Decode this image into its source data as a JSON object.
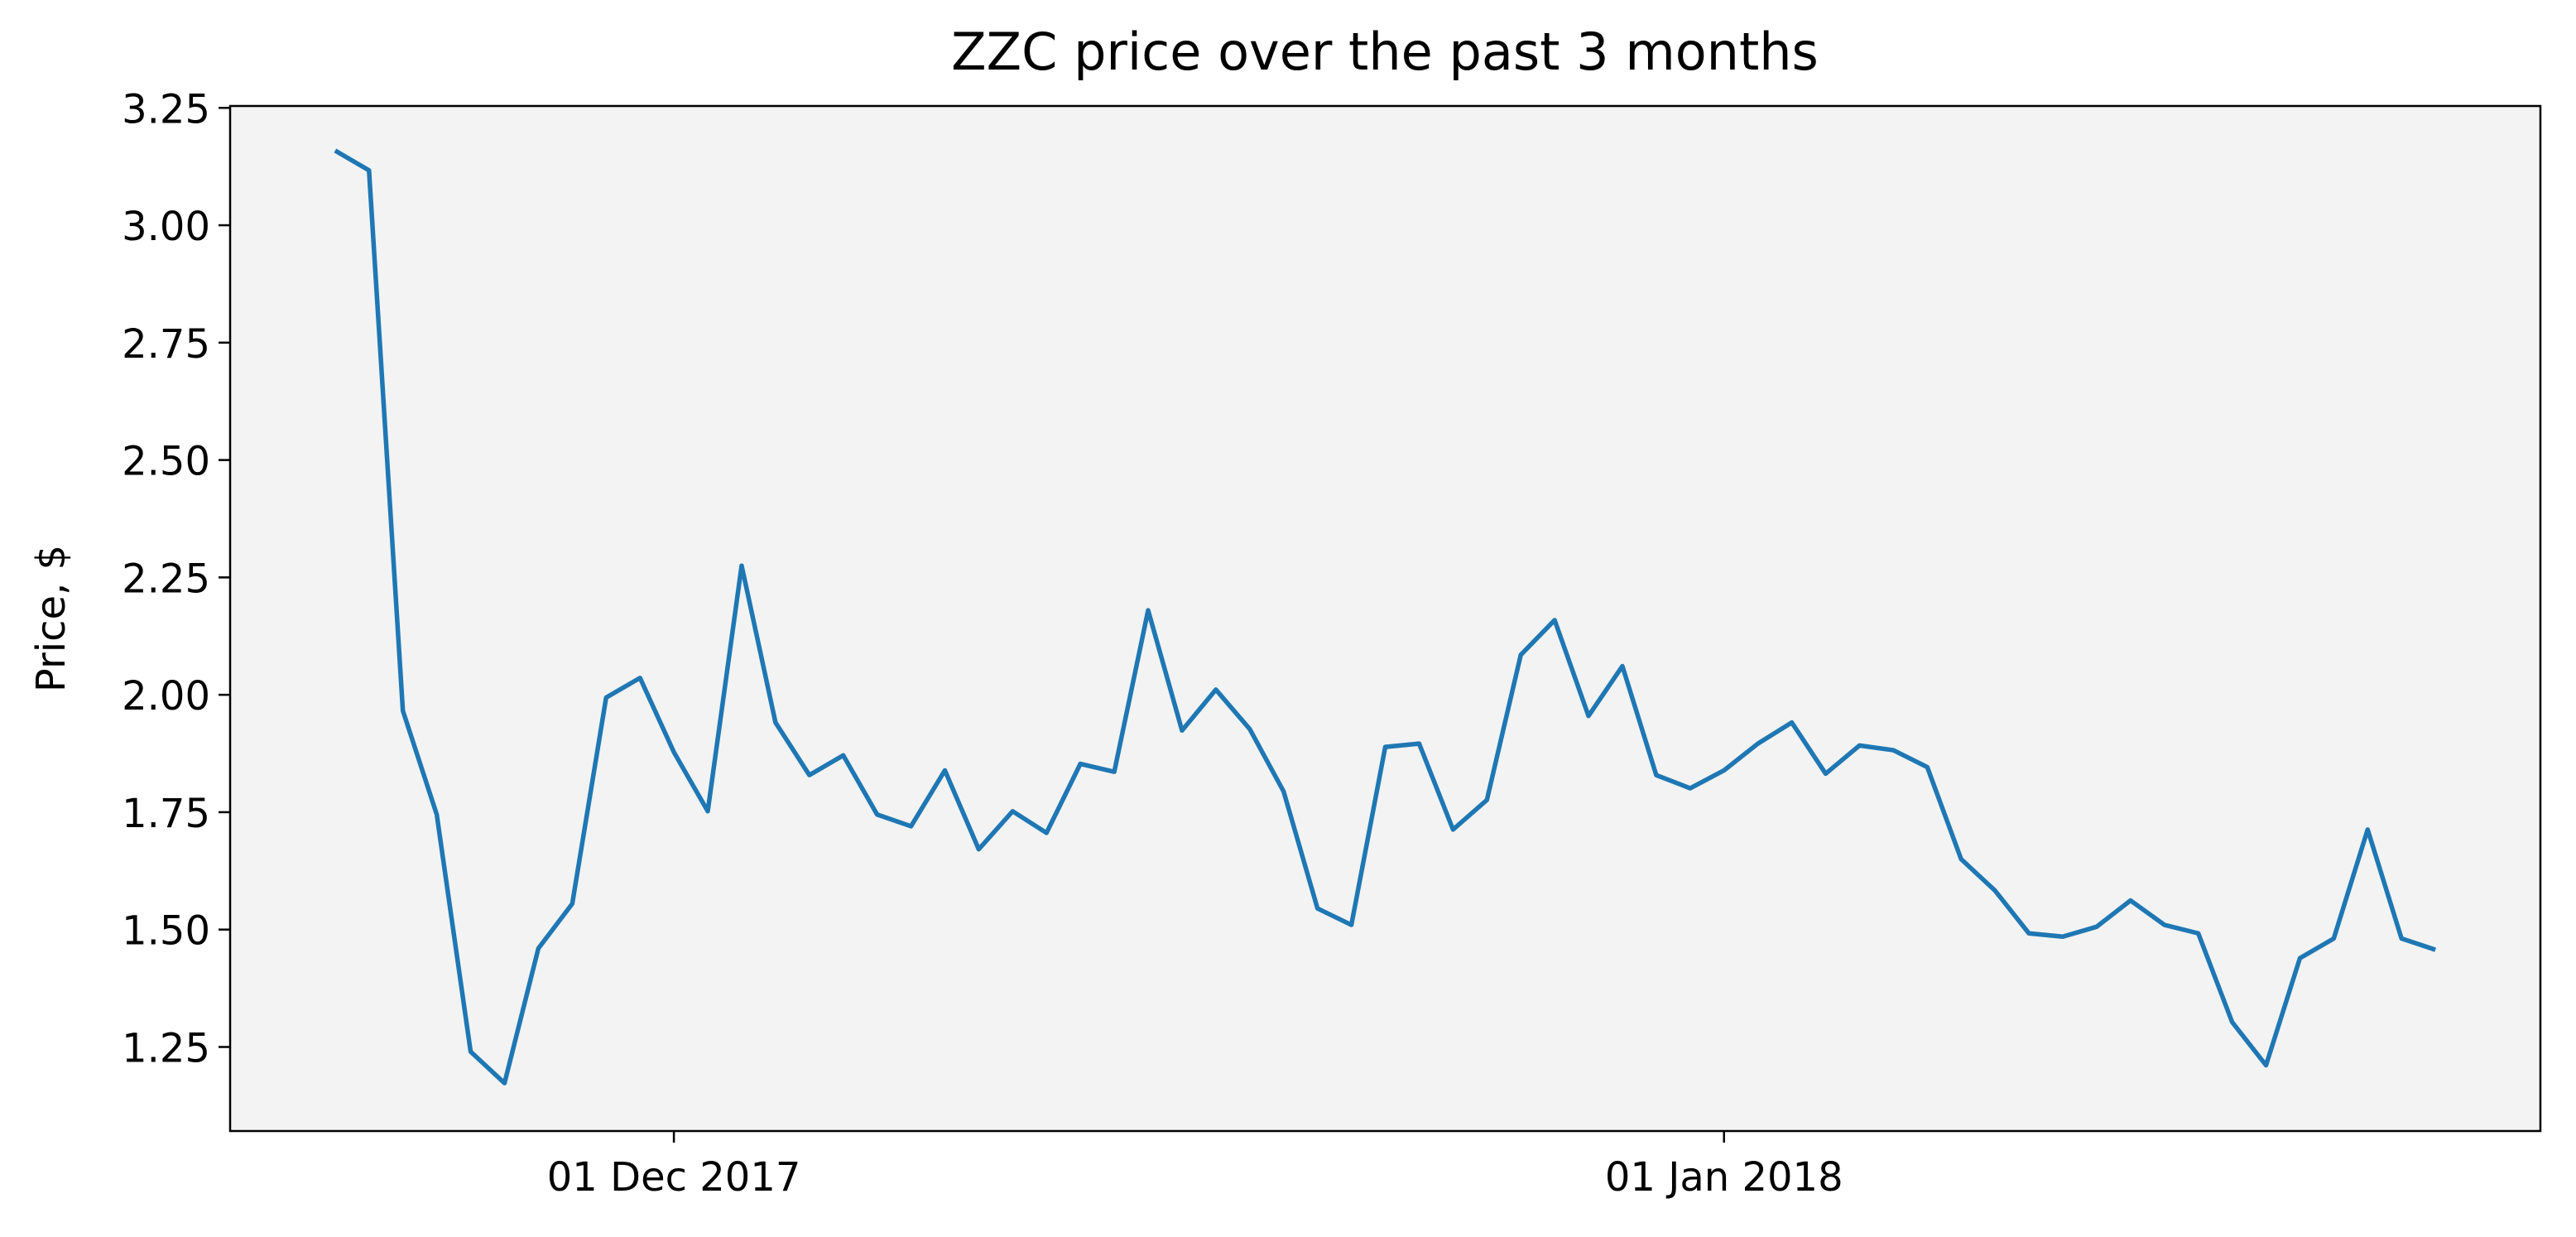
{
  "chart_data": {
    "type": "line",
    "title": "ZZC price over the past 3 months",
    "y_label": "Price, $",
    "x": [
      "2017-11-21",
      "2017-11-22",
      "2017-11-23",
      "2017-11-24",
      "2017-11-25",
      "2017-11-26",
      "2017-11-27",
      "2017-11-28",
      "2017-11-29",
      "2017-11-30",
      "2017-12-01",
      "2017-12-02",
      "2017-12-03",
      "2017-12-04",
      "2017-12-05",
      "2017-12-06",
      "2017-12-07",
      "2017-12-08",
      "2017-12-09",
      "2017-12-10",
      "2017-12-11",
      "2017-12-12",
      "2017-12-13",
      "2017-12-14",
      "2017-12-15",
      "2017-12-16",
      "2017-12-17",
      "2017-12-18",
      "2017-12-19",
      "2017-12-20",
      "2017-12-21",
      "2017-12-22",
      "2017-12-23",
      "2017-12-24",
      "2017-12-25",
      "2017-12-26",
      "2017-12-27",
      "2017-12-28",
      "2017-12-29",
      "2017-12-30",
      "2017-12-31",
      "2018-01-01",
      "2018-01-02",
      "2018-01-03",
      "2018-01-04",
      "2018-01-05",
      "2018-01-06",
      "2018-01-07",
      "2018-01-08",
      "2018-01-09",
      "2018-01-10",
      "2018-01-11",
      "2018-01-12",
      "2018-01-13",
      "2018-01-14",
      "2018-01-15",
      "2018-01-16",
      "2018-01-17",
      "2018-01-18",
      "2018-01-19",
      "2018-01-20",
      "2018-01-21",
      "2018-01-22"
    ],
    "series": [
      {
        "name": "ZZC",
        "color": "#1f77b4",
        "values": [
          3.159,
          3.117,
          1.966,
          1.745,
          1.24,
          1.173,
          1.46,
          1.555,
          1.994,
          2.036,
          1.878,
          1.752,
          2.275,
          1.941,
          1.829,
          1.871,
          1.745,
          1.72,
          1.839,
          1.671,
          1.752,
          1.706,
          1.853,
          1.836,
          2.18,
          1.924,
          2.011,
          1.927,
          1.794,
          1.545,
          1.51,
          1.889,
          1.896,
          1.713,
          1.776,
          2.085,
          2.159,
          1.955,
          2.061,
          1.829,
          1.801,
          1.839,
          1.896,
          1.941,
          1.832,
          1.892,
          1.882,
          1.846,
          1.65,
          1.583,
          1.492,
          1.485,
          1.506,
          1.562,
          1.51,
          1.492,
          1.303,
          1.211,
          1.439,
          1.481,
          1.713,
          1.481,
          1.457
        ]
      }
    ],
    "xlim": [
      "2017-11-17T21:36:00Z",
      "2018-01-25T02:24:00Z"
    ],
    "xticks": [
      {
        "value": "2017-12-01",
        "label": "01 Dec 2017"
      },
      {
        "value": "2018-01-01",
        "label": "01 Jan 2018"
      }
    ],
    "ylim": [
      1.071,
      3.254
    ],
    "yticks": [
      1.25,
      {
        "value": 1.5,
        "label": "1.50"
      },
      1.75,
      {
        "value": 2,
        "label": "2.00"
      },
      2.25,
      {
        "value": 2.5,
        "label": "2.50"
      },
      2.75,
      {
        "value": 3,
        "label": "3.00"
      },
      3.25
    ],
    "plot_background": "#f3f3f3",
    "grid": false
  }
}
